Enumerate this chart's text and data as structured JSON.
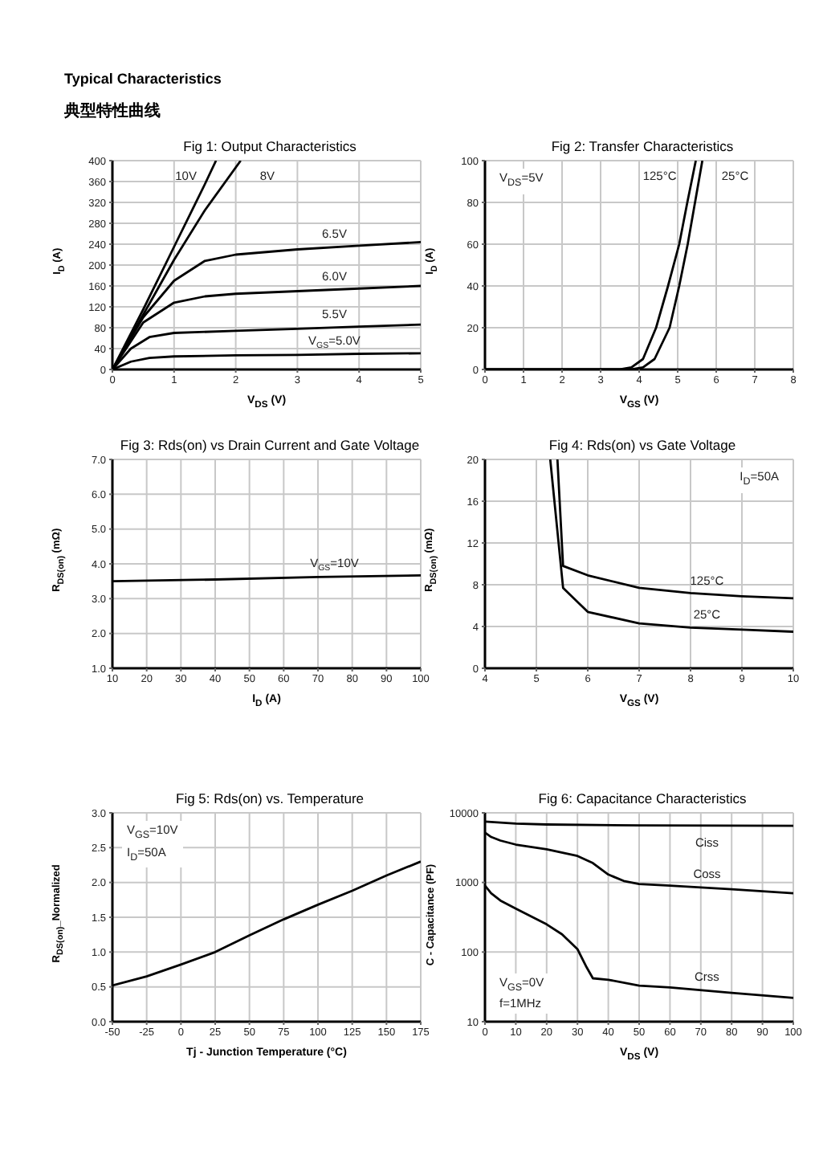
{
  "chart_data": [
    {
      "type": "line",
      "title": "Fig 1: Output Characteristics",
      "xlabel": "V$_{DS}$ (V)",
      "ylabel": "I$_{D}$ (A)",
      "xlim": [
        0,
        5
      ],
      "ylim": [
        0,
        400
      ],
      "xticks": [
        0,
        1,
        2,
        3,
        4,
        5
      ],
      "yticks": [
        0,
        40,
        80,
        120,
        160,
        200,
        240,
        280,
        320,
        360,
        400
      ],
      "grid": true,
      "annotations": [
        "Typical Characteristics",
        "典型特性曲线"
      ],
      "series": [
        {
          "name": "10V",
          "color": "#000000",
          "x": [
            0,
            0.5,
            1,
            1.5,
            1.68
          ],
          "values": [
            0,
            115,
            235,
            355,
            400
          ]
        },
        {
          "name": "8V",
          "color": "#000000",
          "x": [
            0,
            0.5,
            1,
            1.5,
            2.08
          ],
          "values": [
            0,
            105,
            210,
            305,
            400
          ]
        },
        {
          "name": "6.5V",
          "color": "#000000",
          "x": [
            0,
            0.5,
            1,
            1.5,
            2,
            3,
            4,
            5
          ],
          "values": [
            0,
            100,
            170,
            208,
            220,
            230,
            237,
            244
          ]
        },
        {
          "name": "6.0V",
          "color": "#000000",
          "x": [
            0,
            0.5,
            1,
            1.5,
            2,
            3,
            4,
            5
          ],
          "values": [
            0,
            90,
            128,
            140,
            145,
            150,
            155,
            160
          ]
        },
        {
          "name": "5.5V",
          "color": "#000000",
          "x": [
            0,
            0.3,
            0.6,
            1,
            2,
            3,
            4,
            5
          ],
          "values": [
            0,
            40,
            62,
            70,
            74,
            78,
            82,
            86
          ]
        },
        {
          "name": "V$_{GS}$=5.0V",
          "color": "#000000",
          "x": [
            0,
            0.3,
            0.6,
            1,
            2,
            3,
            4,
            5
          ],
          "values": [
            0,
            15,
            22,
            25,
            27,
            28,
            30,
            31
          ]
        }
      ]
    },
    {
      "type": "line",
      "title": "Fig 2: Transfer Characteristics",
      "xlabel": "V$_{GS}$ (V)",
      "ylabel": "I$_{D}$ (A)",
      "xlim": [
        0,
        8
      ],
      "ylim": [
        0,
        100
      ],
      "xticks": [
        0,
        1,
        2,
        3,
        4,
        5,
        6,
        7,
        8
      ],
      "yticks": [
        0,
        20,
        40,
        60,
        80,
        100
      ],
      "grid": true,
      "annotations": [
        "V$_{DS}$=5V"
      ],
      "series": [
        {
          "name": "125°C",
          "color": "#000000",
          "x": [
            0,
            3.5,
            3.8,
            4.1,
            4.44,
            4.75,
            5.04,
            5.25,
            5.47
          ],
          "values": [
            0,
            0,
            1,
            5,
            20,
            40,
            60,
            80,
            100
          ]
        },
        {
          "name": "25°C",
          "color": "#000000",
          "x": [
            0,
            3.8,
            4.1,
            4.4,
            4.79,
            5.04,
            5.26,
            5.45,
            5.64
          ],
          "values": [
            0,
            0,
            1,
            5,
            20,
            40,
            60,
            80,
            100
          ]
        }
      ]
    },
    {
      "type": "line",
      "title": "Fig 3: Rds(on) vs Drain Current and Gate Voltage",
      "xlabel": "I$_{D}$ (A)",
      "ylabel": "R$_{DS(on)}$ (mΩ)",
      "xlim": [
        10,
        100
      ],
      "ylim": [
        1,
        7
      ],
      "xticks": [
        10,
        20,
        30,
        40,
        50,
        60,
        70,
        80,
        90,
        100
      ],
      "yticks": [
        {
          "value": 1,
          "label": "1.0"
        },
        {
          "value": 2,
          "label": "2.0"
        },
        {
          "value": 3,
          "label": "3.0"
        },
        {
          "value": 4,
          "label": "4.0"
        },
        {
          "value": 5,
          "label": "5.0"
        },
        {
          "value": 6,
          "label": "6.0"
        },
        {
          "value": 7,
          "label": "7.0"
        }
      ],
      "grid": true,
      "series": [
        {
          "name": "V$_{GS}$=10V",
          "color": "#000000",
          "x": [
            10,
            40,
            70,
            100
          ],
          "values": [
            3.5,
            3.55,
            3.62,
            3.67
          ]
        }
      ]
    },
    {
      "type": "line",
      "title": "Fig 4: Rds(on) vs Gate Voltage",
      "xlabel": "V$_{GS}$ (V)",
      "ylabel": "R$_{DS(on)}$ (mΩ)",
      "xlim": [
        4,
        10
      ],
      "ylim": [
        0,
        20
      ],
      "xticks": [
        4,
        5,
        6,
        7,
        8,
        9,
        10
      ],
      "yticks": [
        0,
        4,
        8,
        12,
        16,
        20
      ],
      "grid": true,
      "annotations": [
        "I$_{D}$=50A"
      ],
      "series": [
        {
          "name": "125°C",
          "color": "#000000",
          "x": [
            5.41,
            5.52,
            6,
            7,
            8,
            9,
            10
          ],
          "values": [
            20,
            9.8,
            8.9,
            7.7,
            7.2,
            6.9,
            6.7
          ]
        },
        {
          "name": "25°C",
          "color": "#000000",
          "x": [
            5.27,
            5.52,
            6,
            7,
            8,
            9,
            10
          ],
          "values": [
            20,
            7.7,
            5.4,
            4.3,
            3.9,
            3.7,
            3.5
          ]
        }
      ]
    },
    {
      "type": "line",
      "title": "Fig 5: Rds(on) vs. Temperature",
      "xlabel": "Tj - Junction Temperature (°C)",
      "ylabel": "R$_{DS(on)}$_Normalized",
      "xlim": [
        -50,
        175
      ],
      "ylim": [
        0,
        3
      ],
      "xticks": [
        -50,
        -25,
        0,
        25,
        50,
        75,
        100,
        125,
        150,
        175
      ],
      "yticks": [
        {
          "value": 0,
          "label": "0.0"
        },
        0.5,
        {
          "value": 1,
          "label": "1.0"
        },
        1.5,
        {
          "value": 2,
          "label": "2.0"
        },
        2.5,
        {
          "value": 3,
          "label": "3.0"
        }
      ],
      "grid": true,
      "annotations": [
        "V$_{GS}$=10V",
        "I$_{D}$=50A"
      ],
      "series": [
        {
          "color": "#000000",
          "x": [
            -50,
            -25,
            0,
            25,
            50,
            75,
            100,
            125,
            150,
            175
          ],
          "values": [
            0.52,
            0.65,
            0.82,
            1.0,
            1.24,
            1.47,
            1.68,
            1.88,
            2.1,
            2.3
          ]
        }
      ]
    },
    {
      "type": "line",
      "title": "Fig 6: Capacitance Characteristics",
      "xlabel": "V$_{DS}$ (V)",
      "ylabel": "C - Capacitance (PF)",
      "xlim": [
        0,
        100
      ],
      "ylim": [
        10,
        10000
      ],
      "xticks": [
        0,
        10,
        20,
        30,
        40,
        50,
        60,
        70,
        80,
        90,
        100
      ],
      "yticks": [
        10,
        100,
        1000,
        10000
      ],
      "grid": true,
      "log": "y",
      "annotations": [
        "V$_{GS}$=0V",
        "f=1MHz"
      ],
      "series": [
        {
          "name": "Ciss",
          "color": "#000000",
          "x": [
            0,
            10,
            20,
            50,
            100
          ],
          "values": [
            7500,
            7000,
            6800,
            6600,
            6500
          ]
        },
        {
          "name": "Coss",
          "color": "#000000",
          "x": [
            0,
            2,
            5,
            10,
            20,
            30,
            35,
            40,
            45,
            50,
            60,
            80,
            100
          ],
          "values": [
            5200,
            4500,
            4000,
            3500,
            3000,
            2400,
            1900,
            1300,
            1050,
            950,
            900,
            800,
            700
          ]
        },
        {
          "name": "Crss",
          "color": "#000000",
          "x": [
            0,
            2,
            5,
            10,
            20,
            25,
            30,
            33,
            35,
            40,
            50,
            60,
            80,
            100
          ],
          "values": [
            900,
            700,
            550,
            420,
            250,
            180,
            110,
            60,
            42,
            40,
            33,
            31,
            26,
            22
          ]
        }
      ]
    }
  ]
}
